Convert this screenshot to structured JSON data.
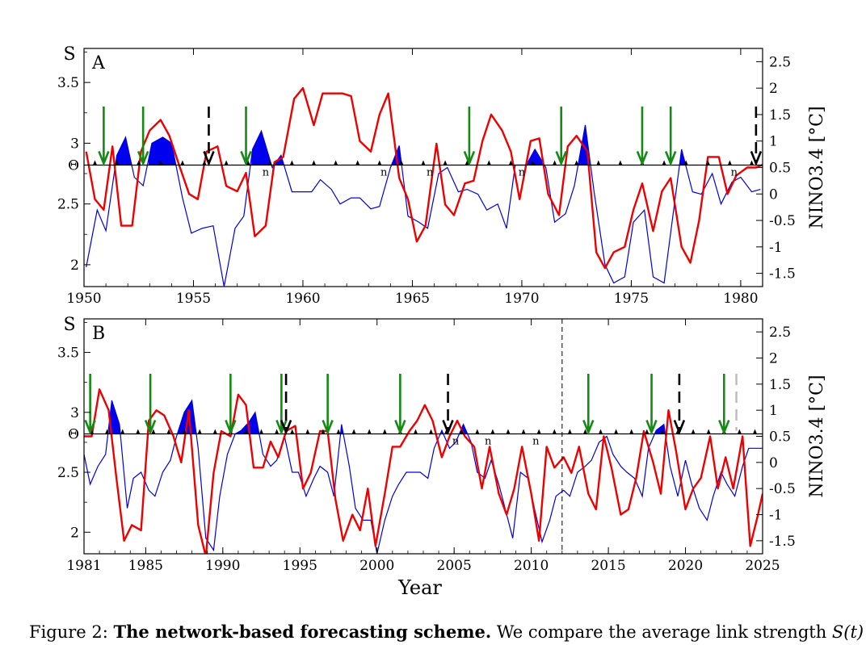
{
  "chart_data": [
    {
      "type": "line",
      "panel_label": "A",
      "xlim": [
        1950,
        1981
      ],
      "x_ticks": [
        "1950",
        "1955",
        "1960",
        "1965",
        "1970",
        "1975",
        "1980"
      ],
      "left_axis": {
        "label": "S",
        "ylim": [
          1.82,
          3.78
        ],
        "ticks": [
          "2",
          "2.5",
          "3",
          "3.5"
        ],
        "threshold_label": "Θ",
        "threshold": 2.82
      },
      "right_axis": {
        "label": "NINO3.4 [°C]",
        "ylim": [
          -1.75,
          2.75
        ],
        "ticks": [
          "-1.5",
          "-1",
          "-0.5",
          "0",
          "0.5",
          "1",
          "1.5",
          "2",
          "2.5"
        ]
      },
      "series": [
        {
          "axis": "left",
          "color": "#0000dd",
          "x": [
            1950.1,
            1950.6,
            1951.0,
            1951.5,
            1951.9,
            1952.3,
            1952.7,
            1953.1,
            1953.6,
            1954.0,
            1954.5,
            1954.9,
            1955.4,
            1955.9,
            1956.4,
            1956.9,
            1957.3,
            1957.7,
            1958.1,
            1958.6,
            1959.0,
            1959.5,
            1959.9,
            1960.4,
            1960.8,
            1961.3,
            1961.7,
            1962.2,
            1962.6,
            1963.1,
            1963.5,
            1964.0,
            1964.4,
            1964.8,
            1965.3,
            1965.7,
            1966.2,
            1966.6,
            1967.1,
            1967.5,
            1968.0,
            1968.4,
            1968.9,
            1969.3,
            1969.7,
            1970.2,
            1970.6,
            1971.1,
            1971.5,
            1972.0,
            1972.4,
            1972.9,
            1973.3,
            1973.8,
            1974.2,
            1974.7,
            1975.1,
            1975.6,
            1976.0,
            1976.5,
            1976.9,
            1977.3,
            1977.8,
            1978.2,
            1978.7,
            1979.1,
            1979.6,
            1980.0,
            1980.5,
            1980.9
          ],
          "y": [
            1.98,
            2.45,
            2.28,
            2.9,
            3.05,
            2.72,
            2.65,
            3.0,
            3.05,
            3.0,
            2.55,
            2.26,
            2.3,
            2.32,
            1.82,
            2.3,
            2.4,
            2.95,
            3.1,
            2.8,
            2.9,
            2.6,
            2.6,
            2.6,
            2.7,
            2.62,
            2.5,
            2.55,
            2.55,
            2.46,
            2.48,
            2.8,
            2.98,
            2.4,
            2.35,
            2.3,
            2.75,
            2.8,
            2.6,
            2.62,
            2.58,
            2.45,
            2.5,
            2.3,
            2.82,
            2.82,
            2.95,
            2.8,
            2.35,
            2.42,
            2.65,
            3.15,
            2.6,
            2.0,
            1.85,
            1.9,
            2.35,
            2.45,
            1.9,
            1.85,
            2.4,
            2.95,
            2.6,
            2.58,
            2.75,
            2.5,
            2.68,
            2.72,
            2.6,
            2.62
          ]
        },
        {
          "axis": "right",
          "color": "#ee0000",
          "x": [
            1950.1,
            1950.5,
            1950.9,
            1951.3,
            1951.7,
            1952.2,
            1952.6,
            1953.0,
            1953.5,
            1953.9,
            1954.3,
            1954.8,
            1955.2,
            1955.6,
            1956.1,
            1956.5,
            1957.0,
            1957.4,
            1957.8,
            1958.3,
            1958.7,
            1959.1,
            1959.6,
            1960.0,
            1960.5,
            1960.9,
            1961.3,
            1961.8,
            1962.2,
            1962.6,
            1963.1,
            1963.5,
            1963.9,
            1964.4,
            1964.8,
            1965.2,
            1965.6,
            1966.1,
            1966.5,
            1966.9,
            1967.4,
            1967.8,
            1968.2,
            1968.6,
            1969.1,
            1969.5,
            1969.9,
            1970.4,
            1970.8,
            1971.2,
            1971.7,
            1972.1,
            1972.5,
            1973.0,
            1973.4,
            1973.8,
            1974.2,
            1974.7,
            1975.1,
            1975.5,
            1976.0,
            1976.4,
            1976.8,
            1977.3,
            1977.7,
            1978.1,
            1978.5,
            1979.0,
            1979.4,
            1979.8,
            1980.3,
            1980.7,
            1981.0
          ],
          "y": [
            0.8,
            -0.1,
            -0.3,
            0.9,
            -0.6,
            -0.6,
            0.8,
            1.2,
            1.4,
            1.1,
            0.6,
            0.0,
            -0.1,
            0.8,
            0.9,
            0.15,
            0.05,
            0.4,
            -0.8,
            -0.6,
            0.6,
            0.7,
            1.8,
            2.0,
            1.3,
            1.9,
            1.9,
            1.9,
            1.85,
            1.0,
            0.8,
            1.5,
            1.9,
            0.3,
            -0.1,
            -0.9,
            -0.6,
            0.95,
            -0.2,
            -0.4,
            0.2,
            0.25,
            1.0,
            1.5,
            1.2,
            0.8,
            -0.1,
            1.0,
            1.05,
            0.0,
            -0.4,
            0.9,
            1.1,
            0.8,
            -1.1,
            -1.4,
            -1.1,
            -1.0,
            -0.3,
            0.2,
            -0.7,
            0.05,
            0.3,
            -1.0,
            -1.3,
            -0.5,
            0.7,
            0.7,
            0.0,
            0.35,
            0.5,
            0.5,
            0.55
          ]
        }
      ],
      "area_fill": {
        "color": "#0000ee",
        "above": "threshold"
      },
      "green_arrows": [
        1950.9,
        1952.7,
        1957.4,
        1967.6,
        1971.8,
        1975.5,
        1976.8
      ],
      "dashed_arrows": [
        1955.7,
        1980.7
      ],
      "n_markers": [
        1958.3,
        1963.7,
        1965.8,
        1970.0,
        1979.7
      ],
      "n_label": "n"
    },
    {
      "type": "line",
      "panel_label": "B",
      "xlim": [
        1981,
        2025
      ],
      "x_ticks": [
        "1981",
        "1985",
        "1990",
        "1995",
        "2000",
        "2005",
        "2010",
        "2015",
        "2020",
        "2025"
      ],
      "xlabel": "Year",
      "left_axis": {
        "label": "S",
        "ylim": [
          1.82,
          3.78
        ],
        "ticks": [
          "2",
          "2.5",
          "3",
          "3.5"
        ],
        "threshold_label": "Θ",
        "threshold": 2.82
      },
      "right_axis": {
        "label": "NINO3.4 [°C]",
        "ylim": [
          -1.75,
          2.75
        ],
        "ticks": [
          "-1.5",
          "-1",
          "-0.5",
          "0",
          "0.5",
          "1",
          "1.5",
          "2",
          "2.5"
        ]
      },
      "vertical_dashed_line": 2012.0,
      "series": [
        {
          "axis": "left",
          "color": "#0000dd",
          "x": [
            1981.0,
            1981.4,
            1981.9,
            1982.4,
            1982.8,
            1983.3,
            1983.8,
            1984.2,
            1984.7,
            1985.2,
            1985.6,
            1986.1,
            1986.6,
            1987.0,
            1987.5,
            1988.0,
            1988.4,
            1988.9,
            1989.4,
            1989.8,
            1990.3,
            1990.8,
            1991.2,
            1991.7,
            1992.1,
            1992.6,
            1993.1,
            1993.5,
            1994.0,
            1994.5,
            1994.9,
            1995.4,
            1995.9,
            1996.3,
            1996.8,
            1997.2,
            1997.7,
            1998.2,
            1998.6,
            1999.1,
            1999.6,
            2000.0,
            2000.5,
            2001.0,
            2001.4,
            2001.9,
            2002.3,
            2002.8,
            2003.3,
            2003.7,
            2004.2,
            2004.7,
            2005.1,
            2005.6,
            2006.1,
            2006.5,
            2007.0,
            2007.4,
            2007.9,
            2008.4,
            2008.8,
            2009.3,
            2009.8,
            2010.2,
            2010.7,
            2011.2,
            2011.6,
            2012.1,
            2012.5,
            2013.0,
            2013.5,
            2013.9,
            2014.4,
            2014.9,
            2015.3,
            2015.8,
            2016.2,
            2016.7,
            2017.2,
            2017.6,
            2018.1,
            2018.6,
            2019.0,
            2019.5,
            2020.0,
            2020.4,
            2020.9,
            2021.4,
            2021.8,
            2022.3,
            2022.7,
            2023.2,
            2023.7,
            2024.1,
            2024.6,
            2025.0
          ],
          "y": [
            2.65,
            2.4,
            2.55,
            2.65,
            3.1,
            2.9,
            2.2,
            2.45,
            2.5,
            2.35,
            2.3,
            2.5,
            2.6,
            2.8,
            3.0,
            3.1,
            2.7,
            1.95,
            1.85,
            2.3,
            2.65,
            2.82,
            2.85,
            2.92,
            3.0,
            2.65,
            2.55,
            2.6,
            2.8,
            2.5,
            2.5,
            2.3,
            2.45,
            2.55,
            2.5,
            2.3,
            2.9,
            2.55,
            2.2,
            2.1,
            2.1,
            1.82,
            2.1,
            2.3,
            2.4,
            2.5,
            2.5,
            2.5,
            2.45,
            2.7,
            2.85,
            2.7,
            2.75,
            2.9,
            2.75,
            2.5,
            2.45,
            2.6,
            2.4,
            2.15,
            1.95,
            2.5,
            2.45,
            2.2,
            1.92,
            2.1,
            2.3,
            2.35,
            2.3,
            2.5,
            2.55,
            2.6,
            2.75,
            2.8,
            2.65,
            2.55,
            2.5,
            2.45,
            2.3,
            2.7,
            2.85,
            2.9,
            2.55,
            2.3,
            2.6,
            2.4,
            2.2,
            2.1,
            2.3,
            2.5,
            2.4,
            2.3,
            2.55,
            2.7,
            2.7,
            2.7
          ]
        },
        {
          "axis": "right",
          "color": "#ee0000",
          "x": [
            1981.0,
            1981.5,
            1982.0,
            1982.6,
            1983.1,
            1983.6,
            1984.1,
            1984.7,
            1985.2,
            1985.7,
            1986.2,
            1986.8,
            1987.3,
            1987.8,
            1988.4,
            1988.9,
            1989.4,
            1989.9,
            1990.5,
            1991.0,
            1991.5,
            1992.0,
            1992.6,
            1993.1,
            1993.6,
            1994.1,
            1994.7,
            1995.2,
            1995.7,
            1996.3,
            1996.8,
            1997.3,
            1997.8,
            1998.4,
            1998.9,
            1999.4,
            1999.9,
            2000.5,
            2001.0,
            2001.5,
            2002.1,
            2002.6,
            2003.1,
            2003.6,
            2004.2,
            2004.7,
            2005.2,
            2005.7,
            2006.3,
            2006.8,
            2007.3,
            2007.9,
            2008.4,
            2008.9,
            2009.4,
            2010.0,
            2010.5,
            2011.0,
            2011.5,
            2012.1,
            2012.6,
            2013.1,
            2013.7,
            2014.2,
            2014.7,
            2015.2,
            2015.8,
            2016.3,
            2016.8,
            2017.3,
            2017.9,
            2018.4,
            2018.9,
            2019.4,
            2020.0,
            2020.5,
            2021.0,
            2021.6,
            2022.1,
            2022.6,
            2023.1,
            2023.7,
            2024.2,
            2024.7,
            2025.0
          ],
          "y": [
            0.5,
            0.5,
            1.4,
            1.0,
            -0.3,
            -1.5,
            -1.2,
            -1.3,
            0.8,
            1.0,
            0.9,
            0.5,
            0.0,
            1.0,
            -1.2,
            -1.8,
            -0.2,
            0.6,
            0.5,
            1.3,
            1.1,
            -0.1,
            -0.1,
            0.4,
            0.1,
            0.6,
            0.7,
            -0.5,
            -0.2,
            0.6,
            0.6,
            -0.7,
            -1.5,
            -1.0,
            -1.3,
            -0.5,
            -1.6,
            -0.6,
            0.3,
            0.3,
            0.6,
            0.8,
            1.1,
            0.8,
            0.1,
            0.5,
            0.8,
            0.5,
            0.3,
            -0.5,
            0.3,
            -0.6,
            -1.0,
            -0.5,
            0.3,
            -0.6,
            -1.5,
            0.3,
            -0.1,
            0.1,
            -0.2,
            0.3,
            -0.6,
            -0.9,
            0.5,
            -0.1,
            -1.0,
            -0.9,
            -0.3,
            0.6,
            0.0,
            -0.6,
            1.0,
            0.2,
            -0.9,
            -0.5,
            -0.3,
            0.5,
            -0.5,
            0.1,
            -0.5,
            0.5,
            -1.6,
            -1.0,
            -0.6
          ]
        }
      ],
      "area_fill": {
        "color": "#0000ee",
        "above": "threshold"
      },
      "green_arrows": [
        1981.4,
        1985.3,
        1990.5,
        1993.8,
        1996.8,
        2001.5,
        2013.7,
        2017.8,
        2022.5
      ],
      "dashed_arrows": [
        1994.1,
        2004.6,
        2019.6
      ],
      "gray_dashed_marker": [
        2023.3
      ],
      "n_markers": [
        2005.1,
        2007.2,
        2010.3
      ],
      "n_label": "n"
    }
  ],
  "caption": {
    "prefix": "Figure 2: ",
    "bold": "The network-based forecasting scheme.",
    "text": " We compare the average link strength ",
    "math": "S(t)"
  }
}
